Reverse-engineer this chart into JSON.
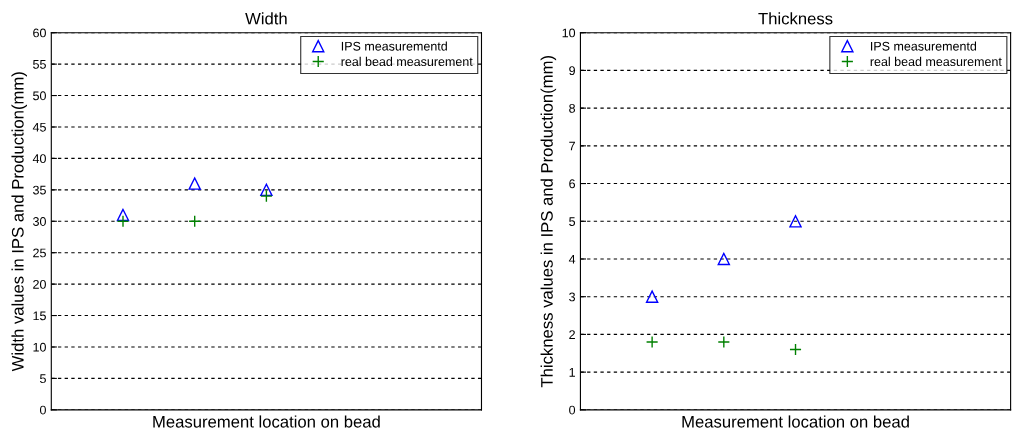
{
  "chart_data": [
    {
      "type": "scatter",
      "title": "Width",
      "xlabel": "Measurement location on bead",
      "ylabel": "Width values in IPS and Production(mm)",
      "categories": [
        null,
        null,
        null,
        null,
        null
      ],
      "ylim": [
        0,
        60
      ],
      "yticks": [
        0,
        5,
        10,
        15,
        20,
        25,
        30,
        35,
        40,
        45,
        50,
        55,
        60
      ],
      "grid": "y",
      "legend": "top right",
      "tick_labels": "y",
      "series": [
        {
          "name": "IPS measurementd",
          "color": "#0000ff",
          "marker": "triangle",
          "values": [
            31,
            36,
            35,
            null,
            null
          ]
        },
        {
          "name": "real bead measurement",
          "color": "#008000",
          "marker": "cross",
          "values": [
            30,
            30,
            34,
            null,
            null
          ]
        }
      ]
    },
    {
      "type": "scatter",
      "title": "Thickness",
      "xlabel": "Measurement location on bead",
      "ylabel": "Thickness values in IPS and Production(mm)",
      "categories": [
        null,
        null,
        null,
        null,
        null
      ],
      "ylim": [
        0,
        10
      ],
      "yticks": [
        0,
        1,
        2,
        3,
        4,
        5,
        6,
        7,
        8,
        9,
        10
      ],
      "grid": "y",
      "legend": "top right",
      "tick_labels": "y",
      "series": [
        {
          "name": "IPS measurementd",
          "color": "#0000ff",
          "marker": "triangle",
          "values": [
            3,
            4,
            5,
            null,
            null
          ]
        },
        {
          "name": "real bead measurement",
          "color": "#008000",
          "marker": "cross",
          "values": [
            1.8,
            1.8,
            1.6,
            null,
            null
          ]
        }
      ]
    }
  ]
}
